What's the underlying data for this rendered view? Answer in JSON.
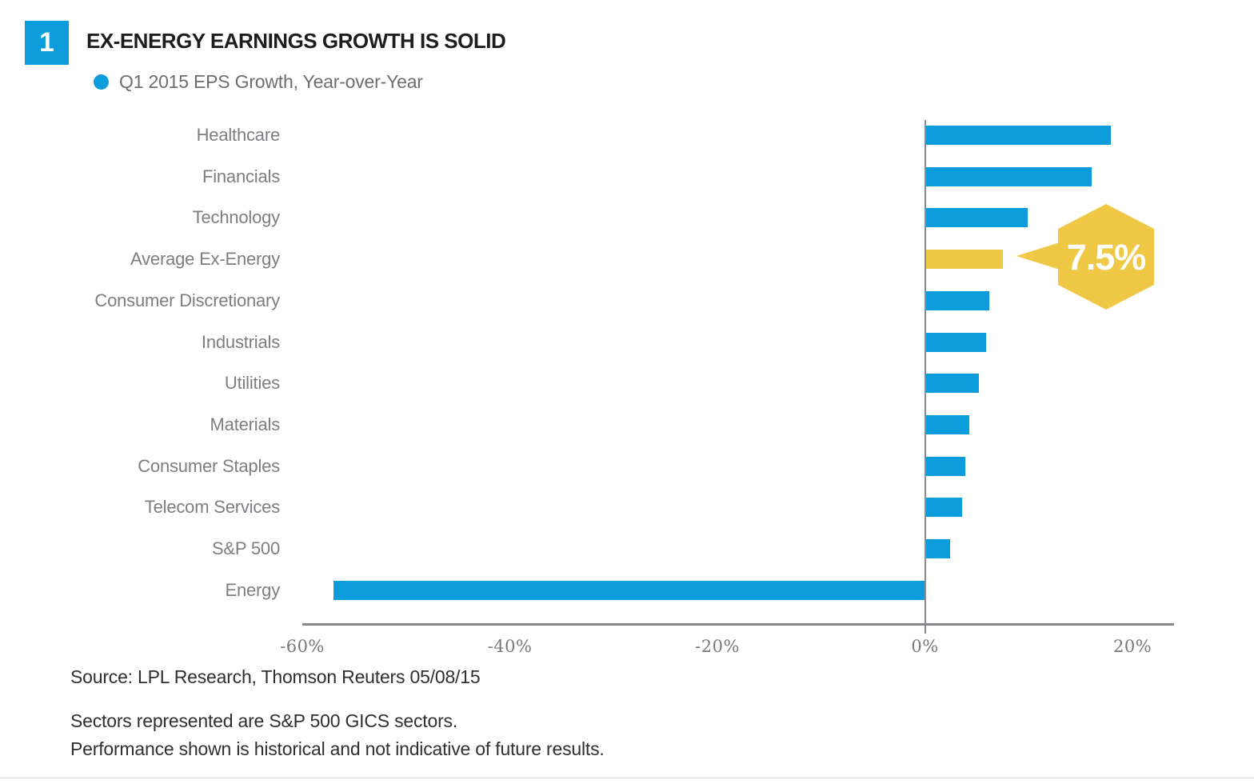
{
  "page": {
    "figure_number": "1",
    "title": "EX-ENERGY EARNINGS GROWTH IS SOLID",
    "legend_label": "Q1 2015 EPS Growth, Year-over-Year",
    "source_line": "Source: LPL Research, Thomson Reuters 05/08/15",
    "disclosures": [
      "Sectors represented are S&P 500 GICS sectors.",
      "Performance shown is historical and not indicative of future results."
    ]
  },
  "colors": {
    "bar_blue": "#0d9cdb",
    "highlight_yellow": "#efc845",
    "badge_blue": "#0d9cdb",
    "label_gray": "#7d7e81",
    "tick_gray": "#77787b",
    "axis_gray": "#85878a",
    "title_black": "#1f1d1c",
    "footer_dark": "#312f2e"
  },
  "chart_data": {
    "type": "bar",
    "orientation": "horizontal",
    "title": "Q1 2015 EPS Growth, Year-over-Year",
    "unit": "%",
    "categories": [
      "Healthcare",
      "Financials",
      "Technology",
      "Average Ex-Energy",
      "Consumer Discretionary",
      "Industrials",
      "Utilities",
      "Materials",
      "Consumer Staples",
      "Telecom Services",
      "S&P 500",
      "Energy"
    ],
    "values": [
      17.9,
      16.1,
      9.9,
      7.5,
      6.2,
      5.9,
      5.2,
      4.3,
      3.9,
      3.6,
      2.4,
      -57
    ],
    "highlight_category": "Average Ex-Energy",
    "callout": {
      "label": "7.5%",
      "attached_to": "Average Ex-Energy"
    },
    "xlim": [
      -60,
      24
    ],
    "xticks": [
      -60,
      -40,
      -20,
      0,
      20
    ],
    "xtick_labels": [
      "-60%",
      "-40%",
      "-20%",
      "0%",
      "20%"
    ],
    "grid": "none",
    "legend_position": "top-left"
  }
}
